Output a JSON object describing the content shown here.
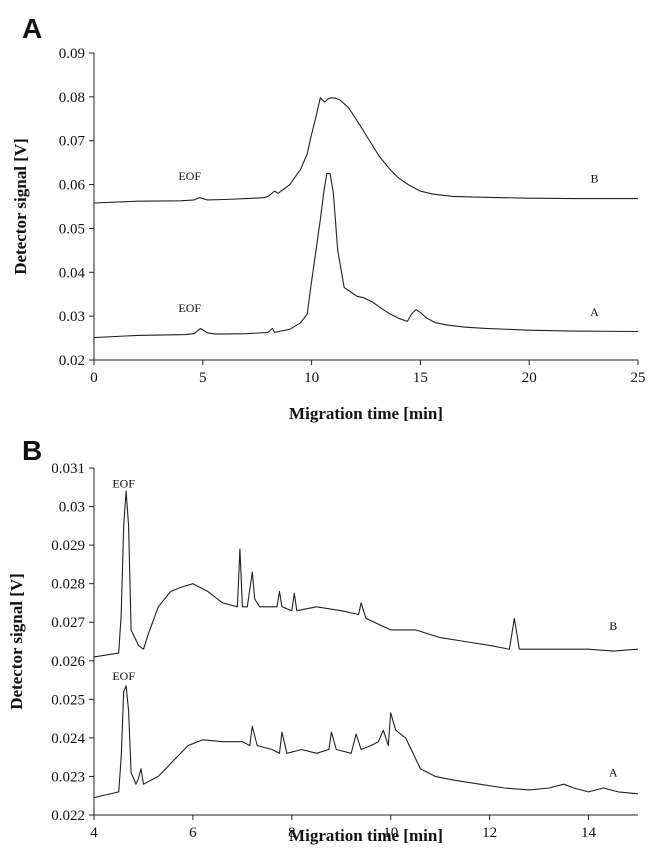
{
  "chart_data": [
    {
      "type": "line",
      "panel_label": "A",
      "xlabel": "Migration time [min]",
      "ylabel": "Detector signal [V]",
      "xlim": [
        0,
        25
      ],
      "ylim": [
        0.02,
        0.09
      ],
      "xticks": [
        "0",
        "5",
        "10",
        "15",
        "20",
        "25"
      ],
      "yticks": [
        "0.02",
        "0.03",
        "0.04",
        "0.05",
        "0.06",
        "0.07",
        "0.08",
        "0.09"
      ],
      "grid": false,
      "series": [
        {
          "name": "A",
          "x": [
            0,
            2,
            4.2,
            4.6,
            4.9,
            5.2,
            5.6,
            7,
            8,
            8.2,
            8.3,
            8.5,
            9,
            9.5,
            9.8,
            10.0,
            10.2,
            10.4,
            10.55,
            10.7,
            10.85,
            11.0,
            11.2,
            11.5,
            11.8,
            12.1,
            12.4,
            12.8,
            13.2,
            13.6,
            14.0,
            14.4,
            14.6,
            14.8,
            15.0,
            15.3,
            15.7,
            16.2,
            17,
            18,
            20,
            22,
            25
          ],
          "y": [
            0.0251,
            0.0256,
            0.0258,
            0.026,
            0.0272,
            0.0262,
            0.0259,
            0.026,
            0.0263,
            0.0272,
            0.0263,
            0.0265,
            0.027,
            0.0285,
            0.0305,
            0.038,
            0.045,
            0.052,
            0.058,
            0.0625,
            0.0625,
            0.058,
            0.045,
            0.0365,
            0.0355,
            0.0345,
            0.0342,
            0.0332,
            0.0318,
            0.0305,
            0.0295,
            0.0288,
            0.0305,
            0.0315,
            0.0308,
            0.0295,
            0.0285,
            0.028,
            0.0275,
            0.0272,
            0.0268,
            0.0266,
            0.0265
          ],
          "annotation": "EOF",
          "annotation_x": 4.4,
          "annotation_y": 0.031,
          "label": "A",
          "label_x": 23.0,
          "label_y": 0.03
        },
        {
          "name": "B",
          "x": [
            0,
            2,
            4,
            4.6,
            4.85,
            5.2,
            6,
            7,
            7.8,
            8.0,
            8.3,
            8.45,
            8.6,
            9.0,
            9.5,
            9.8,
            10.0,
            10.2,
            10.4,
            10.6,
            10.75,
            10.9,
            11.1,
            11.3,
            11.7,
            12.1,
            12.6,
            13.1,
            13.6,
            14.0,
            14.5,
            15.0,
            15.6,
            16.5,
            18,
            20,
            22,
            25
          ],
          "y": [
            0.0558,
            0.0562,
            0.0563,
            0.0565,
            0.057,
            0.0565,
            0.0566,
            0.0568,
            0.057,
            0.0573,
            0.0585,
            0.058,
            0.0585,
            0.06,
            0.0635,
            0.067,
            0.0715,
            0.0755,
            0.0798,
            0.0788,
            0.0795,
            0.0798,
            0.0797,
            0.0793,
            0.0775,
            0.0745,
            0.0705,
            0.0665,
            0.0635,
            0.0615,
            0.0598,
            0.0585,
            0.0578,
            0.0573,
            0.0571,
            0.0569,
            0.0568,
            0.0568
          ],
          "annotation": "EOF",
          "annotation_x": 4.4,
          "annotation_y": 0.061,
          "label": "B",
          "label_x": 23.0,
          "label_y": 0.0605
        }
      ]
    },
    {
      "type": "line",
      "panel_label": "B",
      "xlabel": "Migration time [min]",
      "ylabel": "Detector signal [V]",
      "xlim": [
        4,
        15
      ],
      "ylim": [
        0.022,
        0.031
      ],
      "xticks": [
        "4",
        "6",
        "8",
        "10",
        "12",
        "14"
      ],
      "yticks": [
        "0.022",
        "0.023",
        "0.024",
        "0.025",
        "0.026",
        "0.027",
        "0.028",
        "0.029",
        "0.03",
        "0.031"
      ],
      "grid": false,
      "series": [
        {
          "name": "A",
          "x": [
            4.0,
            4.5,
            4.55,
            4.6,
            4.65,
            4.7,
            4.75,
            4.85,
            4.9,
            4.95,
            5.0,
            5.3,
            5.6,
            5.9,
            6.2,
            6.6,
            7.0,
            7.15,
            7.2,
            7.3,
            7.6,
            7.75,
            7.8,
            7.9,
            8.2,
            8.5,
            8.75,
            8.8,
            8.9,
            9.2,
            9.3,
            9.4,
            9.6,
            9.75,
            9.85,
            9.95,
            10.0,
            10.1,
            10.3,
            10.45,
            10.6,
            10.9,
            11.3,
            11.8,
            12.3,
            12.8,
            13.2,
            13.5,
            13.7,
            14.0,
            14.3,
            14.6,
            15.0
          ],
          "y": [
            0.02245,
            0.0226,
            0.0235,
            0.0252,
            0.02535,
            0.0247,
            0.0231,
            0.0228,
            0.02295,
            0.0232,
            0.0228,
            0.023,
            0.0234,
            0.0238,
            0.02395,
            0.0239,
            0.0239,
            0.0238,
            0.0243,
            0.0238,
            0.0237,
            0.0236,
            0.02415,
            0.0236,
            0.0237,
            0.0236,
            0.0237,
            0.02415,
            0.0237,
            0.0236,
            0.0241,
            0.0237,
            0.0238,
            0.0239,
            0.0242,
            0.0238,
            0.02465,
            0.0242,
            0.024,
            0.0236,
            0.0232,
            0.023,
            0.0229,
            0.0228,
            0.0227,
            0.02265,
            0.0227,
            0.0228,
            0.0227,
            0.0226,
            0.0227,
            0.0226,
            0.02255
          ],
          "annotation": "EOF",
          "annotation_x": 4.6,
          "annotation_y": 0.0255,
          "label": "A",
          "label_x": 14.5,
          "label_y": 0.023
        },
        {
          "name": "B",
          "x": [
            4.0,
            4.5,
            4.55,
            4.6,
            4.65,
            4.7,
            4.75,
            4.9,
            5.0,
            5.1,
            5.3,
            5.55,
            5.75,
            6.0,
            6.3,
            6.6,
            6.9,
            6.95,
            7.0,
            7.1,
            7.2,
            7.25,
            7.35,
            7.7,
            7.75,
            7.8,
            8.0,
            8.05,
            8.1,
            8.5,
            9.0,
            9.35,
            9.4,
            9.5,
            10.0,
            10.5,
            11.0,
            11.5,
            12.0,
            12.4,
            12.5,
            12.6,
            13.0,
            13.5,
            14.0,
            14.5,
            15.0
          ],
          "y": [
            0.0261,
            0.0262,
            0.0272,
            0.0295,
            0.0304,
            0.0295,
            0.0268,
            0.0264,
            0.0263,
            0.0267,
            0.0274,
            0.0278,
            0.0279,
            0.028,
            0.0278,
            0.0275,
            0.0274,
            0.0289,
            0.0274,
            0.0274,
            0.0283,
            0.0276,
            0.0274,
            0.0274,
            0.0278,
            0.0274,
            0.0273,
            0.02775,
            0.0273,
            0.0274,
            0.0273,
            0.0272,
            0.0275,
            0.0271,
            0.0268,
            0.0268,
            0.0266,
            0.0265,
            0.0264,
            0.0263,
            0.0271,
            0.0263,
            0.0263,
            0.0263,
            0.0263,
            0.02625,
            0.0263
          ],
          "annotation": "EOF",
          "annotation_x": 4.6,
          "annotation_y": 0.0305,
          "label": "B",
          "label_x": 14.5,
          "label_y": 0.0268
        }
      ]
    }
  ]
}
